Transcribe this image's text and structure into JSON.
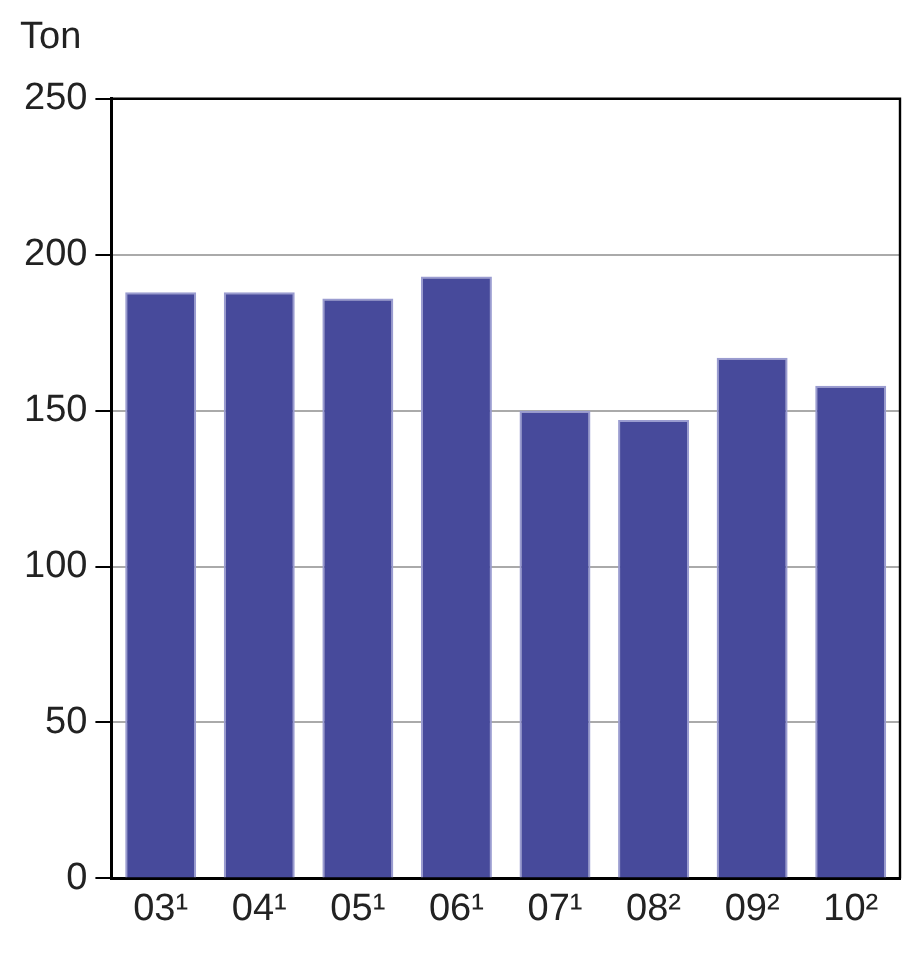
{
  "chart_data": {
    "type": "bar",
    "ylabel": "Ton",
    "categories": [
      "03¹",
      "04¹",
      "05¹",
      "06¹",
      "07¹",
      "08²",
      "09²",
      "10²"
    ],
    "values": [
      188,
      188,
      186,
      193,
      150,
      147,
      167,
      158
    ],
    "color": "#474a9b",
    "ylim": [
      0,
      250
    ],
    "yticks": [
      0,
      50,
      100,
      150,
      200,
      250
    ],
    "grid": "y"
  }
}
